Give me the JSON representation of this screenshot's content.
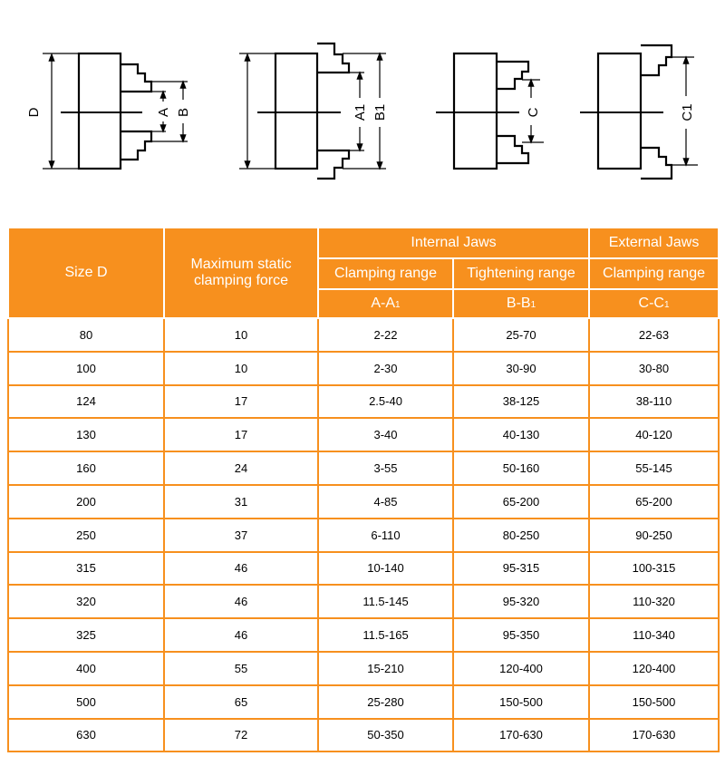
{
  "diagram_labels": {
    "d": "D",
    "a": "A",
    "b": "B",
    "a1": "A1",
    "b1": "B1",
    "c": "C",
    "c1": "C1"
  },
  "colors": {
    "header_bg": "#f7901e",
    "header_text": "#ffffff",
    "row_border": "#f7901e"
  },
  "header": {
    "size": "Size D",
    "force": "Maximum static clamping force",
    "internal": "Internal Jaws",
    "external": "External Jaws",
    "clamping_range": "Clamping range",
    "tightening_range": "Tightening range",
    "external_clamping_range": "Clamping range",
    "aa1": "A-A",
    "bb1": "B-B",
    "cc1": "C-C",
    "sub1": "1"
  },
  "rows": [
    [
      "80",
      "10",
      "2-22",
      "25-70",
      "22-63"
    ],
    [
      "100",
      "10",
      "2-30",
      "30-90",
      "30-80"
    ],
    [
      "124",
      "17",
      "2.5-40",
      "38-125",
      "38-110"
    ],
    [
      "130",
      "17",
      "3-40",
      "40-130",
      "40-120"
    ],
    [
      "160",
      "24",
      "3-55",
      "50-160",
      "55-145"
    ],
    [
      "200",
      "31",
      "4-85",
      "65-200",
      "65-200"
    ],
    [
      "250",
      "37",
      "6-110",
      "80-250",
      "90-250"
    ],
    [
      "315",
      "46",
      "10-140",
      "95-315",
      "100-315"
    ],
    [
      "320",
      "46",
      "11.5-145",
      "95-320",
      "110-320"
    ],
    [
      "325",
      "46",
      "11.5-165",
      "95-350",
      "110-340"
    ],
    [
      "400",
      "55",
      "15-210",
      "120-400",
      "120-400"
    ],
    [
      "500",
      "65",
      "25-280",
      "150-500",
      "150-500"
    ],
    [
      "630",
      "72",
      "50-350",
      "170-630",
      "170-630"
    ]
  ]
}
